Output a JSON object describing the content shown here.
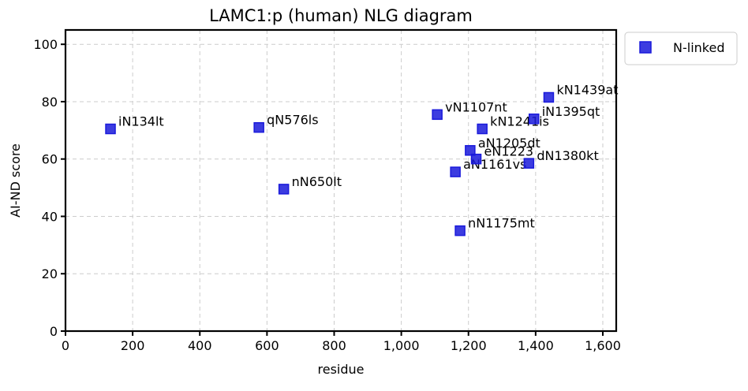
{
  "chart_data": {
    "type": "scatter",
    "title": "LAMC1:p (human) NLG diagram",
    "xlabel": "residue",
    "ylabel": "AI-ND score",
    "xlim": [
      0,
      1640
    ],
    "ylim": [
      0,
      105
    ],
    "xticks": [
      0,
      200,
      400,
      600,
      800,
      1000,
      1200,
      1400,
      1600
    ],
    "xtick_labels": [
      "0",
      "200",
      "400",
      "600",
      "800",
      "1,000",
      "1,200",
      "1,400",
      "1,600"
    ],
    "yticks": [
      0,
      20,
      40,
      60,
      80,
      100
    ],
    "ytick_labels": [
      "0",
      "20",
      "40",
      "60",
      "80",
      "100"
    ],
    "grid": true,
    "legend_position": "outside-top-right",
    "series": [
      {
        "name": "N-linked",
        "color": "#1a1adb",
        "marker": "square",
        "points": [
          {
            "x": 134,
            "y": 70.5,
            "label": "iN134lt"
          },
          {
            "x": 576,
            "y": 71,
            "label": "qN576ls"
          },
          {
            "x": 650,
            "y": 49.5,
            "label": "nN650lt"
          },
          {
            "x": 1107,
            "y": 75.5,
            "label": "vN1107nt"
          },
          {
            "x": 1161,
            "y": 55.5,
            "label": "aN1161vs"
          },
          {
            "x": 1175,
            "y": 35,
            "label": "nN1175mt"
          },
          {
            "x": 1205,
            "y": 63,
            "label": "aN1205dt"
          },
          {
            "x": 1223,
            "y": 60,
            "label": "eN1223"
          },
          {
            "x": 1241,
            "y": 70.5,
            "label": "kN1241is"
          },
          {
            "x": 1380,
            "y": 58.5,
            "label": "dN1380kt"
          },
          {
            "x": 1395,
            "y": 74,
            "label": "iN1395qt"
          },
          {
            "x": 1439,
            "y": 81.5,
            "label": "kN1439at"
          }
        ]
      }
    ]
  }
}
